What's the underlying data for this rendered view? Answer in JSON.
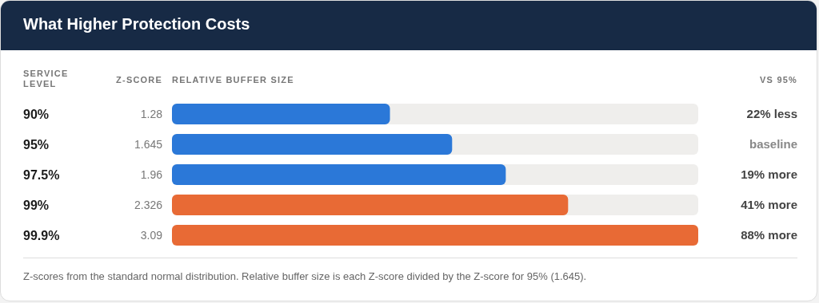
{
  "chart_data": {
    "type": "bar",
    "orientation": "horizontal",
    "data_labels": true,
    "title": "What Higher Protection Costs",
    "ylabel": "SERVICE LEVEL",
    "xlabel": "RELATIVE BUFFER SIZE",
    "categories": [
      "90%",
      "95%",
      "97.5%",
      "99%",
      "99.9%"
    ],
    "values": [
      1.28,
      1.645,
      1.96,
      2.326,
      3.09
    ],
    "colors": [
      "#2b78d8",
      "#2b78d8",
      "#2b78d8",
      "#e86a35",
      "#e86a35"
    ],
    "annotations": [
      "Z-SCORE",
      "VS 95%",
      "22% less",
      "baseline",
      "19% more",
      "41% more",
      "88% more",
      "Z-scores from the standard normal distribution. Relative buffer size is each Z-score divided by the Z-score for 95% (1.645)."
    ]
  }
}
